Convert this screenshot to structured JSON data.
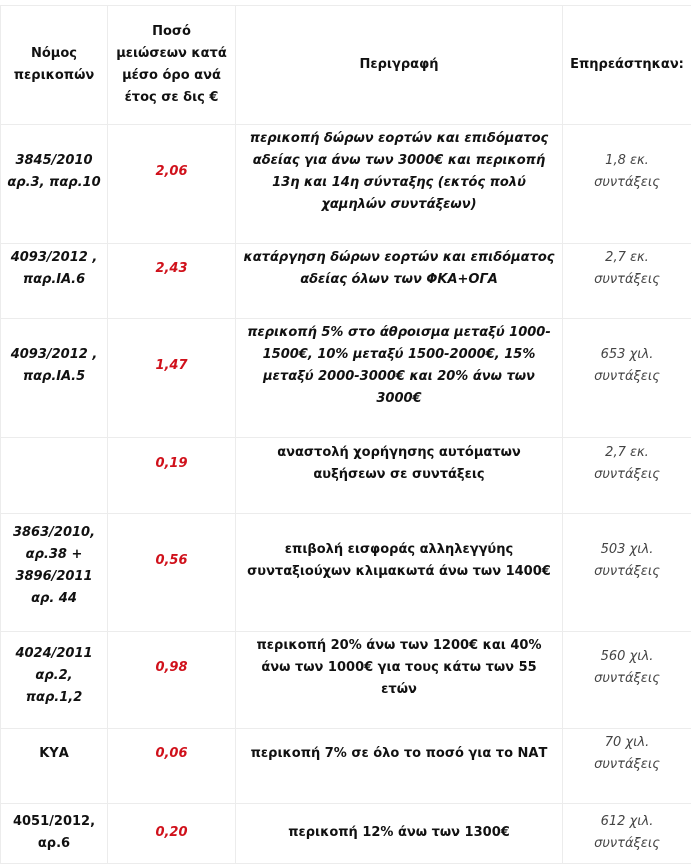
{
  "table": {
    "headers": [
      "Νόμος\nπερικοπών",
      "Ποσό\nμειώσεων κατά\nμέσο όρο ανά\nέτος σε δις €",
      "Περιγραφή",
      "Επηρεάστηκαν:"
    ],
    "rows": [
      {
        "law": "3845/2010\nαρ.3, παρ.10",
        "amount": "2,06",
        "description": "περικοπή δώρων εορτών και επιδόματος αδείας για άνω των 3000€ και περικοπή 13η και 14η σύνταξης (εκτός πολύ χαμηλών συντάξεων)",
        "affected": "1,8 εκ.\nσυντάξεις"
      },
      {
        "law": "4093/2012 ,\nπαρ.ΙΑ.6",
        "amount": "2,43",
        "description": "κατάργηση δώρων εορτών και επιδόματος αδείας όλων των ΦΚΑ+ΟΓΑ",
        "affected": "2,7 εκ.\nσυντάξεις"
      },
      {
        "law": "4093/2012 ,\nπαρ.ΙΑ.5",
        "amount": "1,47",
        "description": "περικοπή 5% στο άθροισμα μεταξύ 1000-1500€, 10% μεταξύ 1500-2000€, 15% μεταξύ 2000-3000€ και 20% άνω των 3000€",
        "affected": "653 χιλ.\nσυντάξεις"
      },
      {
        "law": "",
        "amount": "0,19",
        "description": "αναστολή χορήγησης αυτόματων αυξήσεων σε συντάξεις",
        "affected": "2,7 εκ.\nσυντάξεις"
      },
      {
        "law": "3863/2010,\nαρ.38 +\n3896/2011\nαρ. 44",
        "amount": "0,56",
        "description": "επιβολή εισφοράς αλληλεγγύης συνταξιούχων κλιμακωτά άνω των 1400€",
        "affected": "503 χιλ.\nσυντάξεις"
      },
      {
        "law": "4024/2011\nαρ.2,\nπαρ.1,2",
        "amount": "0,98",
        "description": "περικοπή 20% άνω των 1200€ και 40% άνω των 1000€ για τους κάτω των 55 ετών",
        "affected": "560 χιλ.\nσυντάξεις"
      },
      {
        "law": "ΚΥΑ",
        "amount": "0,06",
        "description": "περικοπή 7% σε όλο το ποσό για το ΝΑΤ",
        "affected": "70 χιλ.\nσυντάξεις"
      },
      {
        "law": "4051/2012,\nαρ.6",
        "amount": "0,20",
        "description": "περικοπή 12% άνω των 1300€",
        "affected": "612 χιλ.\nσυντάξεις"
      }
    ]
  },
  "colors": {
    "amount": "#d0111b",
    "affected": "#444444"
  }
}
